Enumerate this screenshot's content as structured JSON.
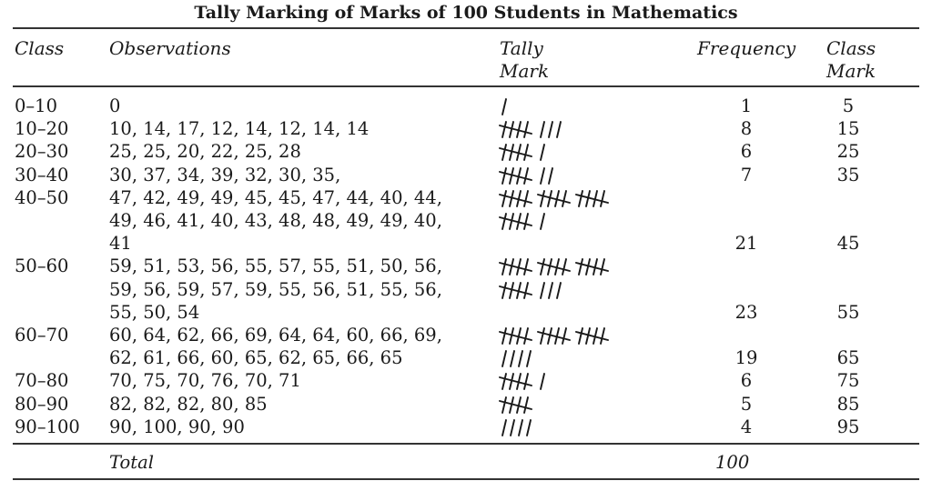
{
  "title": "Tally Marking of Marks of 100 Students in Mathematics",
  "headers": {
    "class": "Class",
    "observations": "Observations",
    "tally_line1": "Tally",
    "tally_line2": "Mark",
    "frequency": "Frequency",
    "classmark_line1": "Class",
    "classmark_line2": "Mark"
  },
  "rows": [
    {
      "class": "0–10",
      "obs": [
        "0"
      ],
      "tally": [
        1
      ],
      "frequency": "1",
      "class_mark": "5"
    },
    {
      "class": "10–20",
      "obs": [
        "10, 14, 17, 12, 14, 12, 14, 14"
      ],
      "tally": [
        8
      ],
      "frequency": "8",
      "class_mark": "15"
    },
    {
      "class": "20–30",
      "obs": [
        "25, 25, 20, 22, 25, 28"
      ],
      "tally": [
        6
      ],
      "frequency": "6",
      "class_mark": "25"
    },
    {
      "class": "30–40",
      "obs": [
        "30, 37, 34, 39, 32, 30, 35,"
      ],
      "tally": [
        7
      ],
      "frequency": "7",
      "class_mark": "35"
    },
    {
      "class": "40–50",
      "obs": [
        "47, 42, 49, 49, 45, 45, 47, 44, 40, 44,",
        "49, 46, 41, 40, 43, 48, 48, 49, 49, 40,",
        "41"
      ],
      "tally": [
        15,
        6
      ],
      "frequency": "21",
      "class_mark": "45"
    },
    {
      "class": "50–60",
      "obs": [
        "59, 51, 53, 56, 55, 57, 55, 51, 50, 56,",
        "59, 56, 59, 57, 59, 55, 56, 51, 55, 56,",
        "55, 50, 54"
      ],
      "tally": [
        15,
        8
      ],
      "frequency": "23",
      "class_mark": "55"
    },
    {
      "class": "60–70",
      "obs": [
        "60, 64, 62, 66, 69, 64, 64, 60, 66, 69,",
        "62, 61, 66, 60, 65, 62, 65, 66, 65"
      ],
      "tally": [
        15,
        4
      ],
      "frequency": "19",
      "class_mark": "65"
    },
    {
      "class": "70–80",
      "obs": [
        "70, 75, 70, 76, 70, 71"
      ],
      "tally": [
        6
      ],
      "frequency": "6",
      "class_mark": "75"
    },
    {
      "class": "80–90",
      "obs": [
        "82, 82, 82, 80, 85"
      ],
      "tally": [
        5
      ],
      "frequency": "5",
      "class_mark": "85"
    },
    {
      "class": "90–100",
      "obs": [
        "90, 100, 90, 90"
      ],
      "tally": [
        4
      ],
      "frequency": "4",
      "class_mark": "95"
    }
  ],
  "total": {
    "label": "Total",
    "value": "100"
  }
}
